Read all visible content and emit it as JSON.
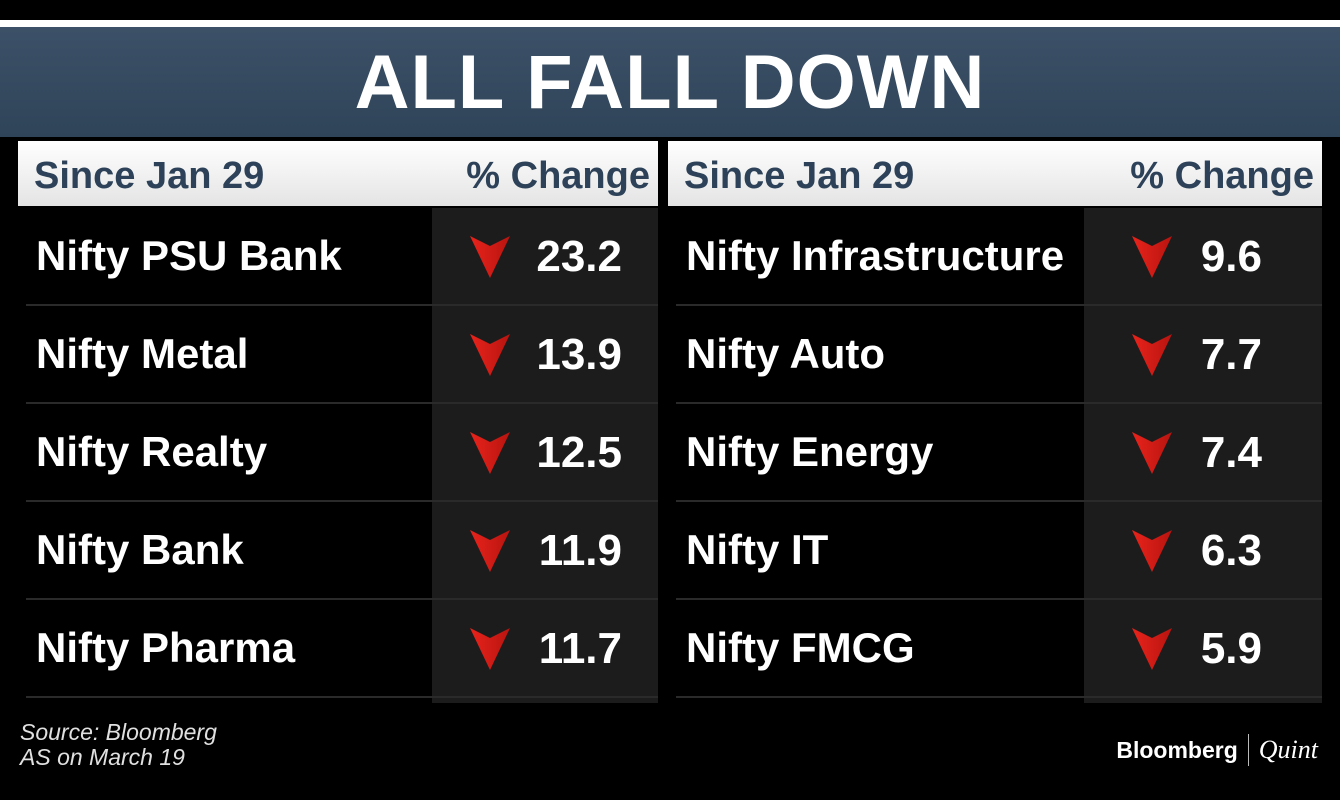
{
  "title": "ALL FALL DOWN",
  "chart_data": {
    "type": "table",
    "title": "ALL FALL DOWN",
    "columns": [
      "Since Jan 29",
      "% Change"
    ],
    "tables": [
      {
        "header_label": "Since Jan 29",
        "header_value": "% Change",
        "rows": [
          {
            "name": "Nifty PSU Bank",
            "value": "23.2"
          },
          {
            "name": "Nifty Metal",
            "value": "13.9"
          },
          {
            "name": "Nifty Realty",
            "value": "12.5"
          },
          {
            "name": "Nifty Bank",
            "value": "11.9"
          },
          {
            "name": "Nifty Pharma",
            "value": "11.7"
          }
        ]
      },
      {
        "header_label": "Since Jan 29",
        "header_value": "% Change",
        "rows": [
          {
            "name": "Nifty Infrastructure",
            "value": "9.6"
          },
          {
            "name": "Nifty Auto",
            "value": "7.7"
          },
          {
            "name": "Nifty Energy",
            "value": "7.4"
          },
          {
            "name": "Nifty IT",
            "value": "6.3"
          },
          {
            "name": "Nifty FMCG",
            "value": "5.9"
          }
        ]
      }
    ],
    "direction": "down",
    "arrow_icon": "down-arrow-icon",
    "colors": {
      "arrow": "#e8231b",
      "banner": "#34495e",
      "header_text": "#2d4258"
    }
  },
  "source": {
    "line1": "Source: Bloomberg",
    "line2": "AS on March 19"
  },
  "logo": {
    "brand": "Bloomberg",
    "sub": "Quint"
  }
}
